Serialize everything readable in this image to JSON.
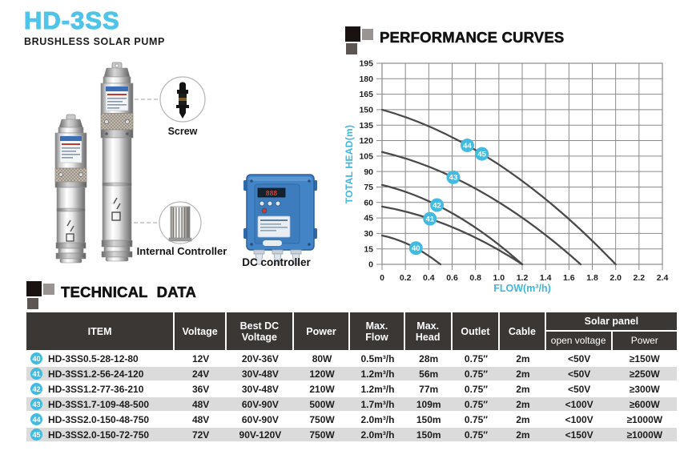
{
  "header": {
    "title": "HD-3SS",
    "subtitle": "BRUSHLESS SOLAR PUMP"
  },
  "illustration": {
    "screw_label": "Screw",
    "internal_controller_label": "Internal Controller",
    "dc_controller_label": "DC controller"
  },
  "performance": {
    "section_title": "PERFORMANCE CURVES"
  },
  "technical": {
    "section_title": "TECHNICAL DATA"
  },
  "chart_data": {
    "type": "line",
    "title": "PERFORMANCE CURVES",
    "xlabel": "FLOW(m³/h)",
    "ylabel": "TOTAL HEAD(m)",
    "xlim": [
      0,
      2.4
    ],
    "ylim": [
      0,
      195
    ],
    "grid": true,
    "x_ticks": [
      "0",
      "0.2",
      "0.4",
      "0.6",
      "0.8",
      "1.0",
      "1.2",
      "1.4",
      "1.6",
      "1.8",
      "2.0",
      "2.2",
      "2.4"
    ],
    "y_ticks": [
      0,
      15,
      30,
      45,
      60,
      75,
      90,
      105,
      120,
      135,
      150,
      165,
      180,
      195
    ],
    "curves": [
      {
        "models": [
          "40"
        ],
        "shutoff_head": 28,
        "max_flow": 0.5,
        "markers": [
          {
            "label": "40",
            "x": 0.29
          }
        ]
      },
      {
        "models": [
          "41"
        ],
        "shutoff_head": 56,
        "max_flow": 1.2,
        "markers": [
          {
            "label": "41",
            "x": 0.41
          }
        ]
      },
      {
        "models": [
          "42"
        ],
        "shutoff_head": 77,
        "max_flow": 1.2,
        "markers": [
          {
            "label": "42",
            "x": 0.47
          }
        ]
      },
      {
        "models": [
          "43"
        ],
        "shutoff_head": 109,
        "max_flow": 1.7,
        "markers": [
          {
            "label": "43",
            "x": 0.61
          }
        ]
      },
      {
        "models": [
          "44",
          "45"
        ],
        "shutoff_head": 150,
        "max_flow": 2.0,
        "markers": [
          {
            "label": "44",
            "x": 0.73
          },
          {
            "label": "45",
            "x": 0.855
          }
        ]
      }
    ]
  },
  "table": {
    "headers": {
      "item": "ITEM",
      "voltage": "Voltage",
      "best_dc": "Best DC\nVoltage",
      "power": "Power",
      "max_flow": "Max.\nFlow",
      "max_head": "Max.\nHead",
      "outlet": "Outlet",
      "cable": "Cable",
      "solar": "Solar panel",
      "open_voltage": "open voltage",
      "panel_power": "Power"
    },
    "rows": [
      {
        "no": "40",
        "item": "HD-3SS0.5-28-12-80",
        "voltage": "12V",
        "best_dc": "20V-36V",
        "power": "80W",
        "max_flow": "0.5m³/h",
        "max_head": "28m",
        "outlet": "0.75″",
        "cable": "2m",
        "open_voltage": "<50V",
        "panel_power": "≥150W"
      },
      {
        "no": "41",
        "item": "HD-3SS1.2-56-24-120",
        "voltage": "24V",
        "best_dc": "30V-48V",
        "power": "120W",
        "max_flow": "1.2m³/h",
        "max_head": "56m",
        "outlet": "0.75″",
        "cable": "2m",
        "open_voltage": "<50V",
        "panel_power": "≥250W"
      },
      {
        "no": "42",
        "item": "HD-3SS1.2-77-36-210",
        "voltage": "36V",
        "best_dc": "30V-48V",
        "power": "210W",
        "max_flow": "1.2m³/h",
        "max_head": "77m",
        "outlet": "0.75″",
        "cable": "2m",
        "open_voltage": "<50V",
        "panel_power": "≥300W"
      },
      {
        "no": "43",
        "item": "HD-3SS1.7-109-48-500",
        "voltage": "48V",
        "best_dc": "60V-90V",
        "power": "500W",
        "max_flow": "1.7m³/h",
        "max_head": "109m",
        "outlet": "0.75″",
        "cable": "2m",
        "open_voltage": "<100V",
        "panel_power": "≥600W"
      },
      {
        "no": "44",
        "item": "HD-3SS2.0-150-48-750",
        "voltage": "48V",
        "best_dc": "60V-90V",
        "power": "750W",
        "max_flow": "2.0m³/h",
        "max_head": "150m",
        "outlet": "0.75″",
        "cable": "2m",
        "open_voltage": "<100V",
        "panel_power": "≥1000W"
      },
      {
        "no": "45",
        "item": "HD-3SS2.0-150-72-750",
        "voltage": "72V",
        "best_dc": "90V-120V",
        "power": "750W",
        "max_flow": "2.0m³/h",
        "max_head": "150m",
        "outlet": "0.75″",
        "cable": "2m",
        "open_voltage": "<150V",
        "panel_power": "≥1000W"
      }
    ]
  },
  "colors": {
    "accent": "#4FC4E8",
    "badge": "#41BBE2",
    "axis_label": "#3EB7E0",
    "table_header_bg": "#3B3735",
    "table_row_alt": "#DBDBDB",
    "curve": "#4B4949",
    "grid": "#8A8A8A"
  }
}
